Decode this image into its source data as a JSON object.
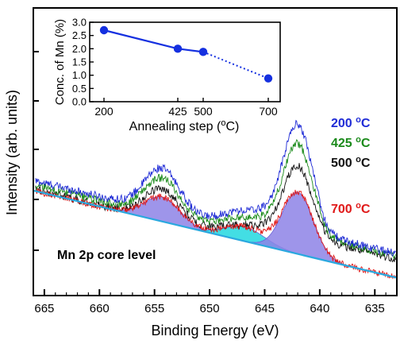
{
  "chart_data": [
    {
      "type": "line",
      "xlabel": "Binding Energy (eV)",
      "ylabel": "Intensity (arb. units)",
      "xlim": [
        666,
        633
      ],
      "x_reversed": true,
      "ylim": [
        0,
        1
      ],
      "x_ticks": [
        665,
        660,
        655,
        650,
        645,
        640,
        635
      ],
      "y_ticks_labeled": false,
      "annotation": "Mn 2p core level",
      "series": [
        {
          "name": "200 °C",
          "name_main": "200 ",
          "name_sup": "o",
          "name_unit": "C",
          "color": "#1f2bd6"
        },
        {
          "name": "425 °C",
          "name_main": "425 ",
          "name_sup": "o",
          "name_unit": "C",
          "color": "#1a8a1a"
        },
        {
          "name": "500 °C",
          "name_main": "500 ",
          "name_sup": "o",
          "name_unit": "C",
          "color": "#111111"
        },
        {
          "name": "700 °C",
          "name_main": "700 ",
          "name_sup": "o",
          "name_unit": "C",
          "color": "#e01818"
        }
      ],
      "shading": {
        "fit_peaks_color": "#8d82e6",
        "satellite_color": "#22d8df",
        "background_line_color": "#2aa8df"
      }
    },
    {
      "type": "line",
      "xlabel": "Annealing step (°C)",
      "xlabel_main": "Annealing step (",
      "xlabel_sup": "o",
      "xlabel_tail": "C)",
      "ylabel": "Conc. of Mn (%)",
      "x_ticks": [
        "200",
        "425",
        "500",
        "700"
      ],
      "ylim": [
        0.0,
        3.0
      ],
      "y_ticks": [
        "0.0",
        "0.5",
        "1.0",
        "1.5",
        "2.0",
        "2.5",
        "3.0"
      ],
      "points": [
        {
          "x": 200,
          "y": 2.7
        },
        {
          "x": 425,
          "y": 2.0
        },
        {
          "x": 500,
          "y": 1.88
        },
        {
          "x": 700,
          "y": 0.88
        }
      ],
      "solid_until_index": 2,
      "color": "#1530e0"
    }
  ]
}
